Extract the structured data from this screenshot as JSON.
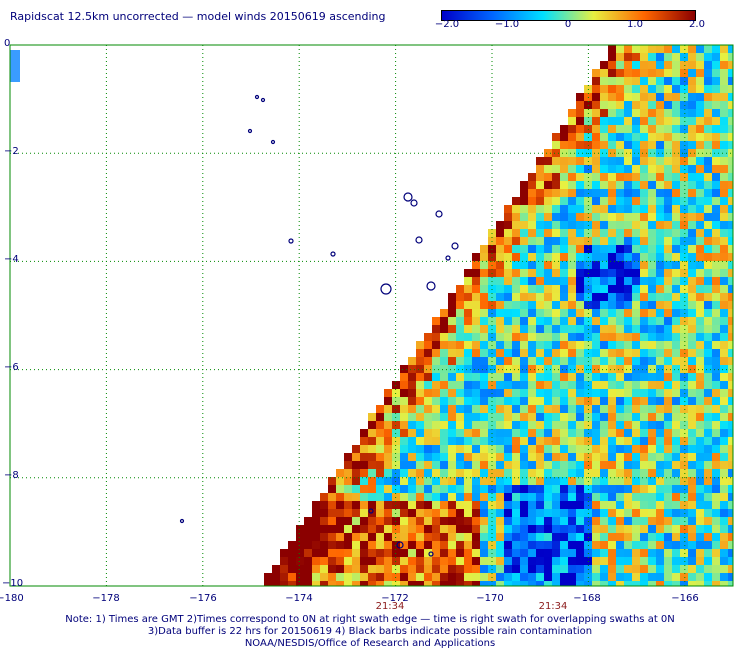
{
  "title": "Rapidscat 12.5km uncorrected — model winds 20150619 ascending",
  "colorbar": {
    "ticks": [
      "−2.0",
      "−1.0",
      "0",
      "1.0",
      "2.0"
    ],
    "values": [
      -2.0,
      -1.0,
      0,
      1.0,
      2.0
    ],
    "colors": [
      "#0000c8",
      "#0066ff",
      "#00e0ff",
      "#e8f040",
      "#ff6600",
      "#8b0000"
    ]
  },
  "map": {
    "lat_labels": [
      "0",
      "−2",
      "−4",
      "−6",
      "−8",
      "−10"
    ],
    "lat_values": [
      0,
      -2,
      -4,
      -6,
      -8,
      -10
    ],
    "lon_labels": [
      "−180",
      "−178",
      "−176",
      "−174",
      "−172",
      "−170",
      "−168",
      "−166"
    ],
    "lon_values": [
      -180,
      -178,
      -176,
      -174,
      -172,
      -170,
      -168,
      -166
    ],
    "lon_range": [
      -180,
      -165
    ],
    "lat_range": [
      0,
      -10
    ],
    "swath_times": [
      "21:34",
      "21:34"
    ],
    "swath_time_lons": [
      -172,
      -168.9
    ],
    "grid_color": "#008800",
    "land_color": "#00007a"
  },
  "notes": [
    "Note: 1) Times are GMT 2)Times correspond to 0N at right swath edge — time is right swath for overlapping swaths at 0N",
    "3)Data buffer is 22 hrs for 20150619 4) Black barbs indicate possible rain contamination",
    "NOAA/NESDIS/Office of Research and Applications"
  ]
}
